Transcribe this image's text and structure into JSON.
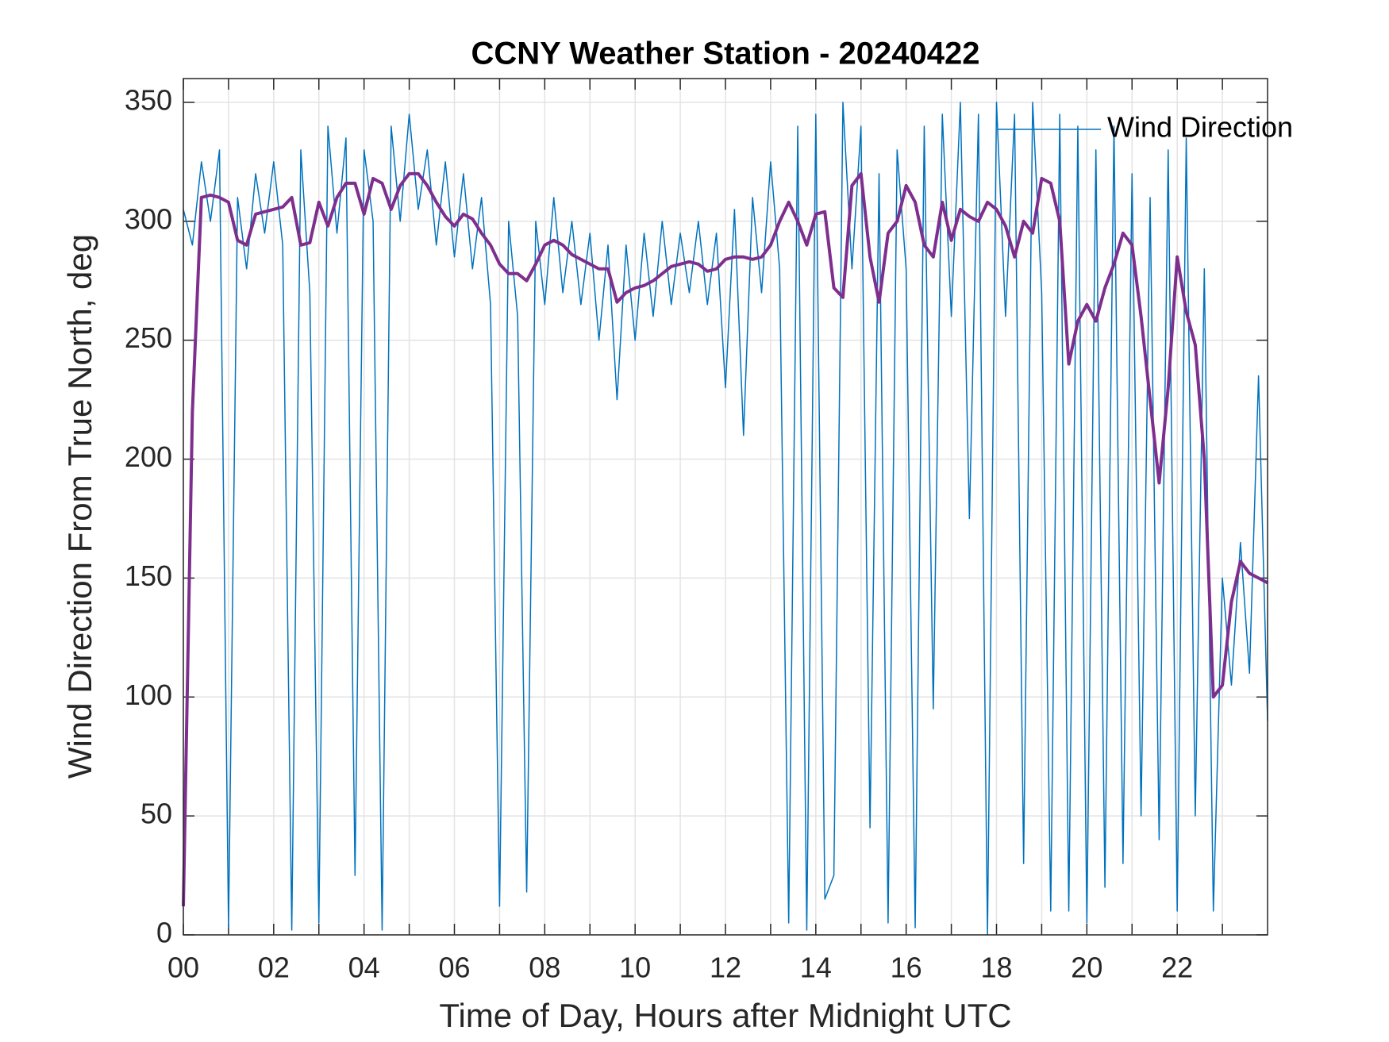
{
  "chart_data": {
    "type": "line",
    "title": "CCNY Weather Station - 20240422",
    "xlabel": "Time of Day, Hours after Midnight UTC",
    "ylabel": "Wind Direction From True North, deg",
    "x": [
      0,
      0.2,
      0.4,
      0.6,
      0.8,
      1,
      1.2,
      1.4,
      1.6,
      1.8,
      2,
      2.2,
      2.4,
      2.6,
      2.8,
      3,
      3.2,
      3.4,
      3.6,
      3.8,
      4,
      4.2,
      4.4,
      4.6,
      4.8,
      5,
      5.2,
      5.4,
      5.6,
      5.8,
      6,
      6.2,
      6.4,
      6.6,
      6.8,
      7,
      7.2,
      7.4,
      7.6,
      7.8,
      8,
      8.2,
      8.4,
      8.6,
      8.8,
      9,
      9.2,
      9.4,
      9.6,
      9.8,
      10,
      10.2,
      10.4,
      10.6,
      10.8,
      11,
      11.2,
      11.4,
      11.6,
      11.8,
      12,
      12.2,
      12.4,
      12.6,
      12.8,
      13,
      13.2,
      13.4,
      13.6,
      13.8,
      14,
      14.2,
      14.4,
      14.6,
      14.8,
      15,
      15.2,
      15.4,
      15.6,
      15.8,
      16,
      16.2,
      16.4,
      16.6,
      16.8,
      17,
      17.2,
      17.4,
      17.6,
      17.8,
      18,
      18.2,
      18.4,
      18.6,
      18.8,
      19,
      19.2,
      19.4,
      19.6,
      19.8,
      20,
      20.2,
      20.4,
      20.6,
      20.8,
      21,
      21.2,
      21.4,
      21.6,
      21.8,
      22,
      22.2,
      22.4,
      22.6,
      22.8,
      23,
      23.2,
      23.4,
      23.6,
      23.8,
      24
    ],
    "series": [
      {
        "name": "Wind Direction",
        "color": "#0072bd",
        "width": 1.5,
        "values": [
          305,
          290,
          325,
          300,
          330,
          3,
          310,
          280,
          320,
          295,
          325,
          290,
          2,
          330,
          270,
          5,
          340,
          295,
          335,
          25,
          330,
          300,
          2,
          340,
          300,
          345,
          305,
          330,
          290,
          325,
          285,
          320,
          280,
          310,
          265,
          12,
          300,
          260,
          18,
          300,
          265,
          310,
          270,
          300,
          265,
          295,
          250,
          290,
          225,
          290,
          250,
          295,
          260,
          300,
          265,
          295,
          270,
          300,
          265,
          295,
          230,
          305,
          210,
          310,
          270,
          325,
          280,
          5,
          340,
          2,
          345,
          15,
          25,
          350,
          280,
          340,
          45,
          320,
          5,
          330,
          280,
          3,
          340,
          95,
          345,
          260,
          350,
          175,
          345,
          0,
          350,
          260,
          345,
          30,
          350,
          270,
          10,
          345,
          10,
          340,
          5,
          330,
          20,
          340,
          30,
          320,
          50,
          310,
          40,
          330,
          10,
          335,
          50,
          280,
          10,
          150,
          105,
          165,
          110,
          235,
          90
        ]
      },
      {
        "color": "#7e2f8e",
        "width": 4,
        "values": [
          12,
          220,
          310,
          311,
          310,
          308,
          292,
          290,
          303,
          304,
          305,
          306,
          310,
          290,
          291,
          308,
          298,
          310,
          316,
          316,
          303,
          318,
          316,
          305,
          315,
          320,
          320,
          315,
          308,
          302,
          298,
          303,
          301,
          295,
          290,
          282,
          278,
          278,
          275,
          282,
          290,
          292,
          290,
          286,
          284,
          282,
          280,
          280,
          266,
          270,
          272,
          273,
          275,
          278,
          281,
          282,
          283,
          282,
          279,
          280,
          284,
          285,
          285,
          284,
          285,
          290,
          300,
          308,
          300,
          290,
          303,
          304,
          272,
          268,
          315,
          320,
          285,
          266,
          295,
          300,
          315,
          308,
          290,
          285,
          308,
          292,
          305,
          302,
          300,
          308,
          305,
          298,
          285,
          300,
          295,
          318,
          316,
          300,
          240,
          258,
          265,
          258,
          272,
          282,
          295,
          290,
          260,
          225,
          190,
          230,
          285,
          262,
          248,
          200,
          100,
          105,
          140,
          157,
          152,
          150,
          148
        ]
      }
    ],
    "xlim": [
      0,
      24
    ],
    "xticks": [
      {
        "value": 0,
        "label": "00"
      },
      {
        "value": 2,
        "label": "02"
      },
      {
        "value": 4,
        "label": "04"
      },
      {
        "value": 6,
        "label": "06"
      },
      {
        "value": 8,
        "label": "08"
      },
      {
        "value": 10,
        "label": "10"
      },
      {
        "value": 12,
        "label": "12"
      },
      {
        "value": 14,
        "label": "14"
      },
      {
        "value": 16,
        "label": "16"
      },
      {
        "value": 18,
        "label": "18"
      },
      {
        "value": 20,
        "label": "20"
      },
      {
        "value": 22,
        "label": "22"
      }
    ],
    "xminorticks": [
      1,
      3,
      5,
      7,
      9,
      11,
      13,
      15,
      17,
      19,
      21,
      23
    ],
    "ylim": [
      0,
      360
    ],
    "yticks": [
      0,
      50,
      100,
      150,
      200,
      250,
      300,
      350
    ],
    "grid": true,
    "legend": "northeast"
  }
}
